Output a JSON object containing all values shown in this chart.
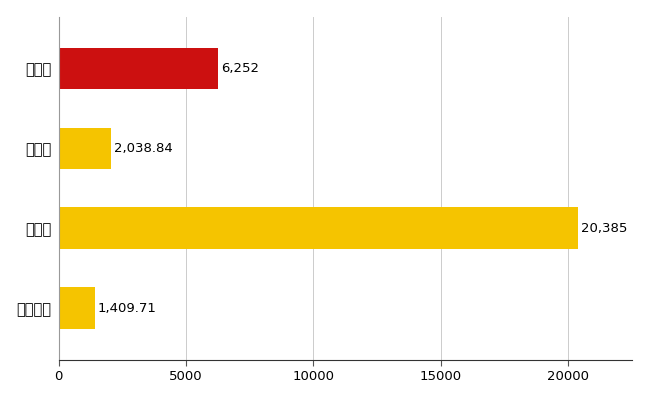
{
  "categories": [
    "尾崎市",
    "県平均",
    "県最大",
    "全国平均"
  ],
  "values": [
    6252,
    2038.84,
    20385,
    1409.71
  ],
  "labels": [
    "6,252",
    "2,038.84",
    "20,385",
    "1,409.71"
  ],
  "bar_colors": [
    "#cc1010",
    "#f5c400",
    "#f5c400",
    "#f5c400"
  ],
  "background_color": "#ffffff",
  "grid_color": "#cccccc",
  "xlim": [
    0,
    22500
  ],
  "xticks": [
    0,
    5000,
    10000,
    15000,
    20000
  ],
  "label_fontsize": 10.5,
  "tick_fontsize": 9.5,
  "value_label_fontsize": 9.5,
  "bar_height": 0.52,
  "figsize": [
    6.5,
    4.0
  ],
  "dpi": 100
}
